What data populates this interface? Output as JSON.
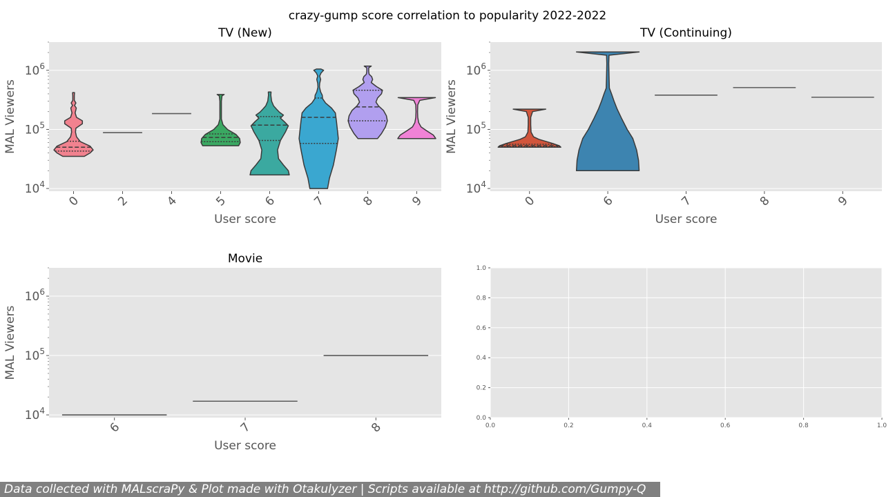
{
  "figure_title": "crazy-gump score correlation to popularity 2022-2022",
  "footer_text": "Data collected with MALscraPy & Plot made with Otakulyzer | Scripts available at http://github.com/Gumpy-Q",
  "colors": {
    "panel_bg": "#e5e5e5",
    "grid": "#ffffff",
    "outline": "#3a3a3a",
    "tick_text": "#555555",
    "footer_bg": "#808080",
    "palette": [
      "#f1828f",
      "#d19a3a",
      "#9bab2f",
      "#3aa862",
      "#3ba9a0",
      "#3aa7d0",
      "#b19fef",
      "#f082d6"
    ]
  },
  "chart_data": [
    {
      "type": "violin",
      "title": "TV (New)",
      "xlabel": "User score",
      "ylabel": "MAL Viewers",
      "yscale": "log",
      "ylim": [
        9000,
        3000000
      ],
      "ytick_labels": [
        "10^4",
        "10^5",
        "10^6"
      ],
      "grid": true,
      "categories": [
        "0",
        "2",
        "4",
        "5",
        "6",
        "7",
        "8",
        "9"
      ],
      "violins": [
        {
          "score": "0",
          "color": "#f1828f",
          "min": 35000,
          "max": 420000,
          "quartiles": [
            43000,
            50000,
            63000
          ],
          "profile": [
            [
              35000,
              0.55
            ],
            [
              40000,
              0.85
            ],
            [
              45000,
              1.0
            ],
            [
              52000,
              0.85
            ],
            [
              62000,
              0.35
            ],
            [
              75000,
              0.15
            ],
            [
              90000,
              0.1
            ],
            [
              105000,
              0.12
            ],
            [
              125000,
              0.45
            ],
            [
              140000,
              0.45
            ],
            [
              160000,
              0.15
            ],
            [
              190000,
              0.08
            ],
            [
              230000,
              0.14
            ],
            [
              255000,
              0.05
            ],
            [
              280000,
              0.12
            ],
            [
              310000,
              0.04
            ],
            [
              370000,
              0.04
            ],
            [
              420000,
              0.05
            ]
          ]
        },
        {
          "score": "2",
          "color": "#d19a3a",
          "single": 88000
        },
        {
          "score": "4",
          "color": "#9bab2f",
          "single": 185000
        },
        {
          "score": "5",
          "color": "#3aa862",
          "min": 53000,
          "max": 390000,
          "quartiles": [
            62000,
            73000,
            84000
          ],
          "profile": [
            [
              53000,
              0.92
            ],
            [
              60000,
              1.0
            ],
            [
              70000,
              0.97
            ],
            [
              82000,
              0.78
            ],
            [
              100000,
              0.35
            ],
            [
              120000,
              0.12
            ],
            [
              150000,
              0.04
            ],
            [
              200000,
              0.04
            ],
            [
              300000,
              0.04
            ],
            [
              370000,
              0.07
            ],
            [
              390000,
              0.18
            ]
          ]
        },
        {
          "score": "6",
          "color": "#3ba9a0",
          "min": 17000,
          "max": 430000,
          "quartiles": [
            65000,
            118000,
            165000
          ],
          "profile": [
            [
              17000,
              1.0
            ],
            [
              20000,
              0.95
            ],
            [
              25000,
              0.7
            ],
            [
              32000,
              0.45
            ],
            [
              45000,
              0.4
            ],
            [
              65000,
              0.55
            ],
            [
              90000,
              0.8
            ],
            [
              115000,
              0.95
            ],
            [
              135000,
              0.75
            ],
            [
              155000,
              0.55
            ],
            [
              175000,
              0.7
            ],
            [
              195000,
              0.5
            ],
            [
              220000,
              0.35
            ],
            [
              250000,
              0.2
            ],
            [
              300000,
              0.1
            ],
            [
              380000,
              0.06
            ],
            [
              430000,
              0.07
            ]
          ]
        },
        {
          "score": "7",
          "color": "#3aa7d0",
          "min": 10000,
          "max": 1050000,
          "quartiles": [
            58000,
            160000,
            340000
          ],
          "profile": [
            [
              10000,
              0.45
            ],
            [
              15000,
              0.55
            ],
            [
              25000,
              0.75
            ],
            [
              45000,
              0.9
            ],
            [
              70000,
              1.0
            ],
            [
              100000,
              0.95
            ],
            [
              140000,
              0.9
            ],
            [
              190000,
              0.85
            ],
            [
              230000,
              0.65
            ],
            [
              280000,
              0.35
            ],
            [
              330000,
              0.2
            ],
            [
              380000,
              0.18
            ],
            [
              430000,
              0.1
            ],
            [
              520000,
              0.04
            ],
            [
              600000,
              0.05
            ],
            [
              700000,
              0.1
            ],
            [
              800000,
              0.05
            ],
            [
              900000,
              0.12
            ],
            [
              1000000,
              0.25
            ],
            [
              1050000,
              0.12
            ]
          ]
        },
        {
          "score": "8",
          "color": "#b19fef",
          "min": 70000,
          "max": 1180000,
          "quartiles": [
            140000,
            240000,
            460000
          ],
          "profile": [
            [
              70000,
              0.5
            ],
            [
              85000,
              0.7
            ],
            [
              110000,
              0.9
            ],
            [
              140000,
              1.0
            ],
            [
              170000,
              0.95
            ],
            [
              210000,
              0.8
            ],
            [
              250000,
              0.55
            ],
            [
              290000,
              0.42
            ],
            [
              340000,
              0.5
            ],
            [
              400000,
              0.7
            ],
            [
              460000,
              0.75
            ],
            [
              530000,
              0.45
            ],
            [
              620000,
              0.18
            ],
            [
              700000,
              0.25
            ],
            [
              780000,
              0.2
            ],
            [
              860000,
              0.07
            ],
            [
              950000,
              0.05
            ],
            [
              1100000,
              0.05
            ],
            [
              1180000,
              0.18
            ]
          ]
        },
        {
          "score": "9",
          "color": "#f082d6",
          "min": 70000,
          "max": 345000,
          "quartiles": [],
          "profile": [
            [
              70000,
              0.97
            ],
            [
              80000,
              0.85
            ],
            [
              95000,
              0.5
            ],
            [
              110000,
              0.22
            ],
            [
              130000,
              0.1
            ],
            [
              160000,
              0.05
            ],
            [
              200000,
              0.04
            ],
            [
              260000,
              0.05
            ],
            [
              310000,
              0.15
            ],
            [
              345000,
              0.95
            ]
          ]
        }
      ]
    },
    {
      "type": "violin",
      "title": "TV (Continuing)",
      "xlabel": "User score",
      "ylabel": "MAL Viewers",
      "yscale": "log",
      "ylim": [
        9000,
        3000000
      ],
      "ytick_labels": [
        "10^4",
        "10^5",
        "10^6"
      ],
      "grid": true,
      "categories": [
        "0",
        "6",
        "7",
        "8",
        "9"
      ],
      "violins": [
        {
          "score": "0",
          "color": "#d1553c",
          "min": 50000,
          "max": 220000,
          "quartiles": [
            51000,
            53000,
            56000
          ],
          "profile": [
            [
              50000,
              1.0
            ],
            [
              53000,
              0.95
            ],
            [
              57000,
              0.78
            ],
            [
              62000,
              0.55
            ],
            [
              68000,
              0.3
            ],
            [
              75000,
              0.13
            ],
            [
              90000,
              0.05
            ],
            [
              120000,
              0.04
            ],
            [
              160000,
              0.04
            ],
            [
              200000,
              0.1
            ],
            [
              220000,
              0.52
            ]
          ]
        },
        {
          "score": "6",
          "color": "#3d84b0",
          "min": 20000,
          "max": 2050000,
          "quartiles": [],
          "profile": [
            [
              20000,
              1.0
            ],
            [
              30000,
              0.98
            ],
            [
              45000,
              0.92
            ],
            [
              70000,
              0.8
            ],
            [
              100000,
              0.62
            ],
            [
              150000,
              0.45
            ],
            [
              220000,
              0.3
            ],
            [
              300000,
              0.2
            ],
            [
              400000,
              0.12
            ],
            [
              500000,
              0.05
            ],
            [
              800000,
              0.04
            ],
            [
              1300000,
              0.03
            ],
            [
              1800000,
              0.04
            ],
            [
              2050000,
              1.0
            ]
          ]
        },
        {
          "score": "7",
          "color": "#8b7cbf",
          "single": 380000
        },
        {
          "score": "8",
          "color": "#777777",
          "single": 510000
        },
        {
          "score": "9",
          "color": "#c9b03a",
          "single": 350000
        }
      ]
    },
    {
      "type": "violin",
      "title": "Movie",
      "xlabel": "User score",
      "ylabel": "MAL Viewers",
      "yscale": "log",
      "ylim": [
        9000,
        3000000
      ],
      "ytick_labels": [
        "10^4",
        "10^5",
        "10^6"
      ],
      "grid": true,
      "categories": [
        "6",
        "7",
        "8"
      ],
      "violins": [
        {
          "score": "6",
          "color": "#666666",
          "single": 10000
        },
        {
          "score": "7",
          "color": "#666666",
          "single": 17000
        },
        {
          "score": "8",
          "color": "#666666",
          "single": 100000
        }
      ]
    },
    {
      "type": "empty",
      "xlim": [
        0,
        1
      ],
      "ylim": [
        0,
        1
      ],
      "grid": true,
      "xticks": [
        "0.0",
        "0.2",
        "0.4",
        "0.6",
        "0.8",
        "1.0"
      ],
      "yticks": [
        "0.0",
        "0.2",
        "0.4",
        "0.6",
        "0.8",
        "1.0"
      ]
    }
  ]
}
